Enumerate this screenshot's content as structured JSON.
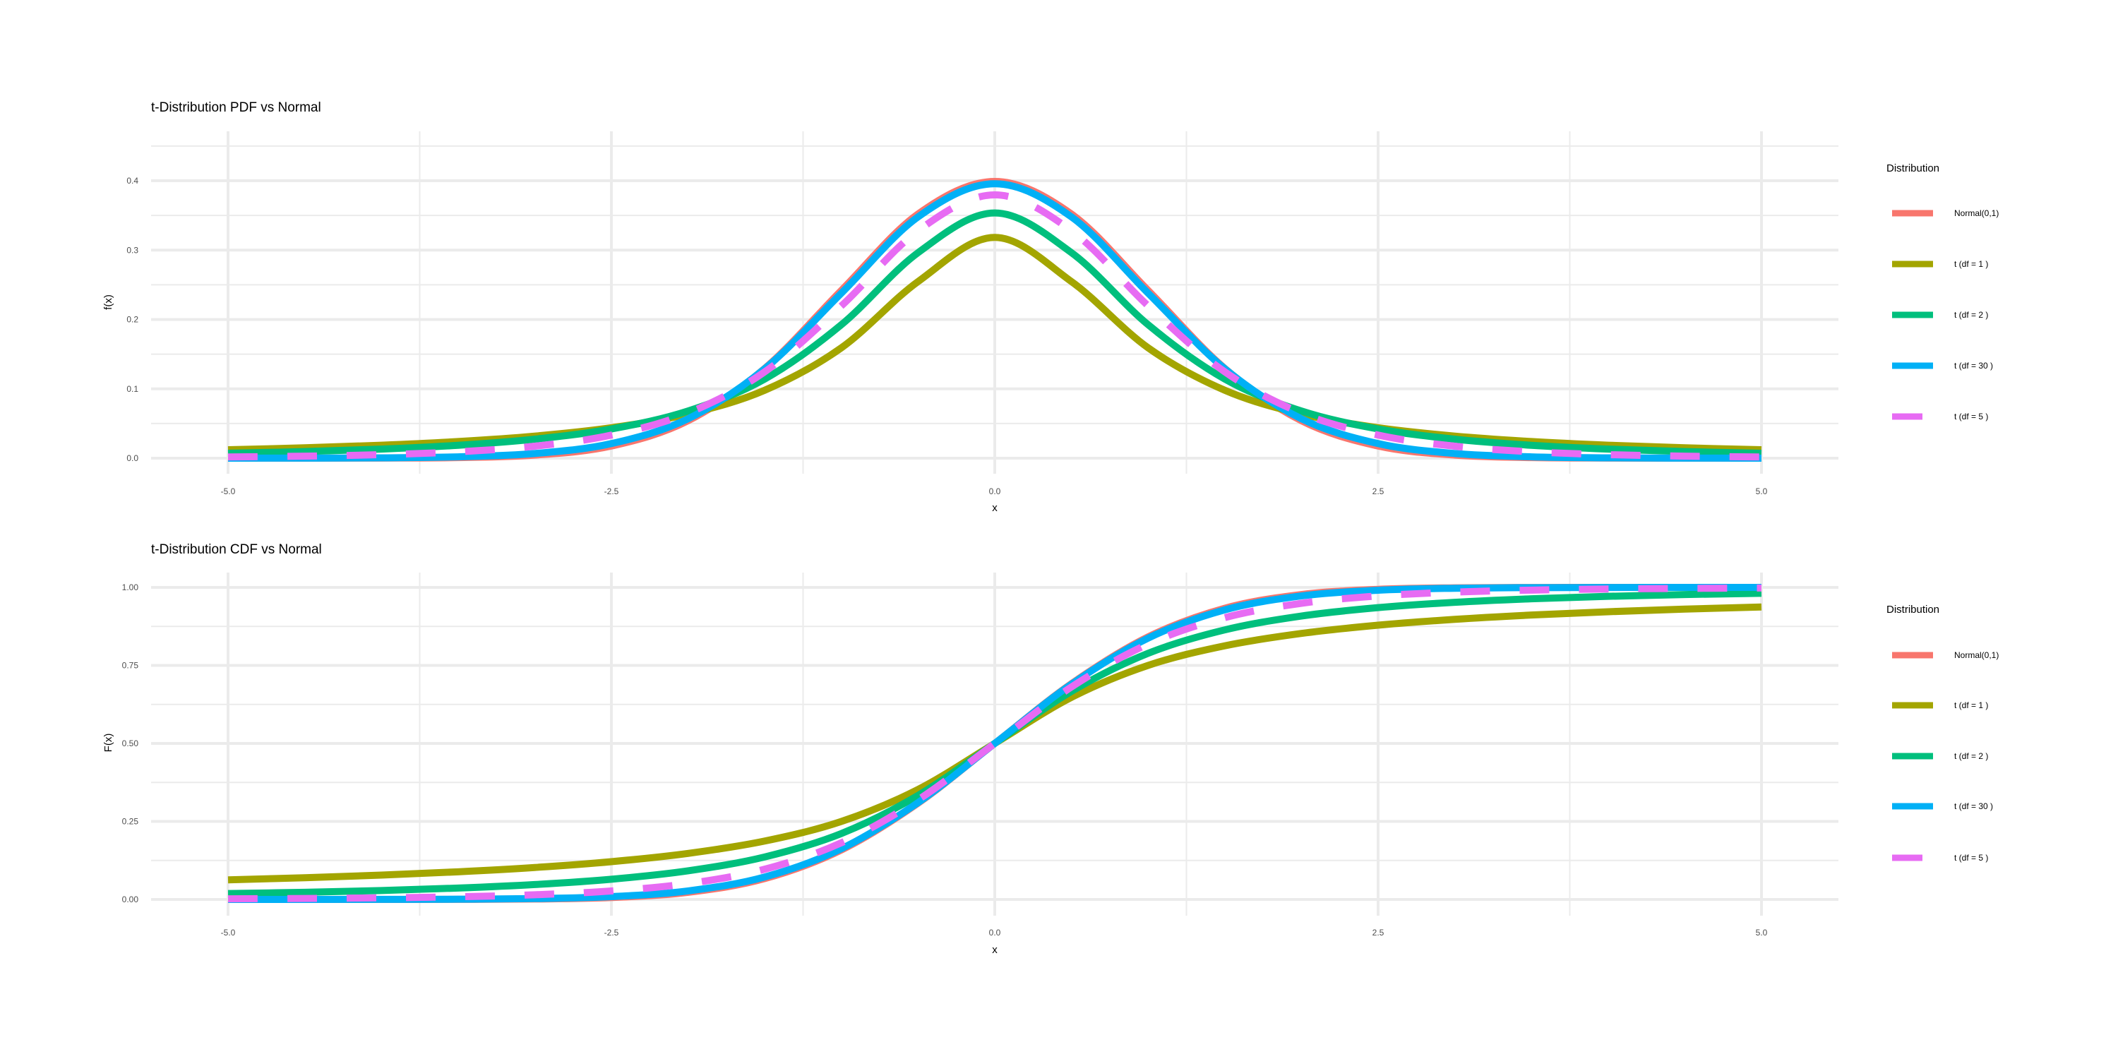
{
  "colors": {
    "Normal(0,1)": "#F8766D",
    "t (df = 1 )": "#A3A500",
    "t (df = 2 )": "#00BF7D",
    "t (df = 30 )": "#00B0F6",
    "t (df = 5 )": "#E76BF3"
  },
  "chart_data": [
    {
      "type": "line",
      "title": "t-Distribution PDF vs Normal",
      "xlabel": "x",
      "ylabel": "f(x)",
      "xlim": [
        -5,
        5
      ],
      "ylim": [
        0,
        0.45
      ],
      "xticks": [
        "-5.0",
        "-2.5",
        "0.0",
        "2.5",
        "5.0"
      ],
      "yticks": [
        "0.0",
        "0.1",
        "0.2",
        "0.3",
        "0.4"
      ],
      "grid": true,
      "legend": {
        "title": "Distribution",
        "placement": "right"
      },
      "x": [
        -5,
        -4.5,
        -4,
        -3.5,
        -3,
        -2.5,
        -2,
        -1.5,
        -1,
        -0.5,
        0,
        0.5,
        1,
        1.5,
        2,
        2.5,
        3,
        3.5,
        4,
        4.5,
        5
      ],
      "series": [
        {
          "name": "Normal(0,1)",
          "dashed": false,
          "values": [
            1.5e-06,
            1.6e-05,
            0.00013,
            0.00087,
            0.00443,
            0.01753,
            0.05399,
            0.12952,
            0.24197,
            0.35207,
            0.39894,
            0.35207,
            0.24197,
            0.12952,
            0.05399,
            0.01753,
            0.00443,
            0.00087,
            0.00013,
            1.6e-05,
            1.5e-06
          ]
        },
        {
          "name": "t (df = 1 )",
          "dashed": false,
          "values": [
            0.01224,
            0.01497,
            0.01872,
            0.02404,
            0.03183,
            0.0439,
            0.06366,
            0.09794,
            0.15915,
            0.25465,
            0.31831,
            0.25465,
            0.15915,
            0.09794,
            0.06366,
            0.0439,
            0.03183,
            0.02404,
            0.01872,
            0.01497,
            0.01224
          ]
        },
        {
          "name": "t (df = 2 )",
          "dashed": false,
          "values": [
            0.00713,
            0.00953,
            0.01309,
            0.01859,
            0.02741,
            0.0422,
            0.06804,
            0.11413,
            0.19245,
            0.2963,
            0.35355,
            0.2963,
            0.19245,
            0.11413,
            0.06804,
            0.0422,
            0.02741,
            0.01859,
            0.01309,
            0.00953,
            0.00713
          ]
        },
        {
          "name": "t (df = 30 )",
          "dashed": false,
          "values": [
            3e-05,
            0.00013,
            0.00053,
            0.00196,
            0.00678,
            0.02106,
            0.05685,
            0.12896,
            0.23799,
            0.34788,
            0.39563,
            0.34788,
            0.23799,
            0.12896,
            0.05685,
            0.02106,
            0.00678,
            0.00196,
            0.00053,
            0.00013,
            3e-05
          ]
        },
        {
          "name": "t (df = 5 )",
          "dashed": true,
          "values": [
            0.00176,
            0.00295,
            0.00512,
            0.00924,
            0.01729,
            0.03333,
            0.06509,
            0.12452,
            0.21968,
            0.32793,
            0.37961,
            0.32793,
            0.21968,
            0.12452,
            0.06509,
            0.03333,
            0.01729,
            0.00924,
            0.00512,
            0.00295,
            0.00176
          ]
        }
      ]
    },
    {
      "type": "line",
      "title": "t-Distribution CDF vs Normal",
      "xlabel": "x",
      "ylabel": "F(x)",
      "xlim": [
        -5,
        5
      ],
      "ylim": [
        0,
        1
      ],
      "xticks": [
        "-5.0",
        "-2.5",
        "0.0",
        "2.5",
        "5.0"
      ],
      "yticks": [
        "0.00",
        "0.25",
        "0.50",
        "0.75",
        "1.00"
      ],
      "grid": true,
      "legend": {
        "title": "Distribution",
        "placement": "right"
      },
      "x": [
        -5,
        -4.5,
        -4,
        -3.5,
        -3,
        -2.5,
        -2,
        -1.5,
        -1,
        -0.5,
        0,
        0.5,
        1,
        1.5,
        2,
        2.5,
        3,
        3.5,
        4,
        4.5,
        5
      ],
      "series": [
        {
          "name": "Normal(0,1)",
          "dashed": false,
          "values": [
            0.0,
            0.0,
            3e-05,
            0.00023,
            0.00135,
            0.00621,
            0.02275,
            0.06681,
            0.15866,
            0.30854,
            0.5,
            0.69146,
            0.84134,
            0.93319,
            0.97725,
            0.99379,
            0.99865,
            0.99977,
            0.99997,
            1.0,
            1.0
          ]
        },
        {
          "name": "t (df = 1 )",
          "dashed": false,
          "values": [
            0.06283,
            0.0696,
            0.07798,
            0.08859,
            0.10242,
            0.12112,
            0.14758,
            0.18717,
            0.25,
            0.35242,
            0.5,
            0.64758,
            0.75,
            0.81283,
            0.85242,
            0.87888,
            0.89758,
            0.91141,
            0.92202,
            0.9304,
            0.93717
          ]
        },
        {
          "name": "t (df = 2 )",
          "dashed": false,
          "values": [
            0.01887,
            0.023,
            0.0286,
            0.03642,
            0.04773,
            0.06481,
            0.09175,
            0.1362,
            0.21132,
            0.33333,
            0.5,
            0.66667,
            0.78868,
            0.8638,
            0.90825,
            0.93519,
            0.95227,
            0.96358,
            0.9714,
            0.977,
            0.98113
          ]
        },
        {
          "name": "t (df = 30 )",
          "dashed": false,
          "values": [
            1e-05,
            5e-05,
            0.00019,
            0.00074,
            0.0027,
            0.00908,
            0.02732,
            0.07201,
            0.16263,
            0.31037,
            0.5,
            0.68963,
            0.83737,
            0.92799,
            0.97268,
            0.99092,
            0.9973,
            0.99926,
            0.99981,
            0.99995,
            0.99999
          ]
        },
        {
          "name": "t (df = 5 )",
          "dashed": true,
          "values": [
            0.00205,
            0.00321,
            0.00517,
            0.00863,
            0.015,
            0.02726,
            0.05097,
            0.09697,
            0.18161,
            0.31923,
            0.5,
            0.68077,
            0.81839,
            0.90303,
            0.94903,
            0.97274,
            0.985,
            0.99137,
            0.99483,
            0.99679,
            0.99795
          ]
        }
      ]
    }
  ]
}
